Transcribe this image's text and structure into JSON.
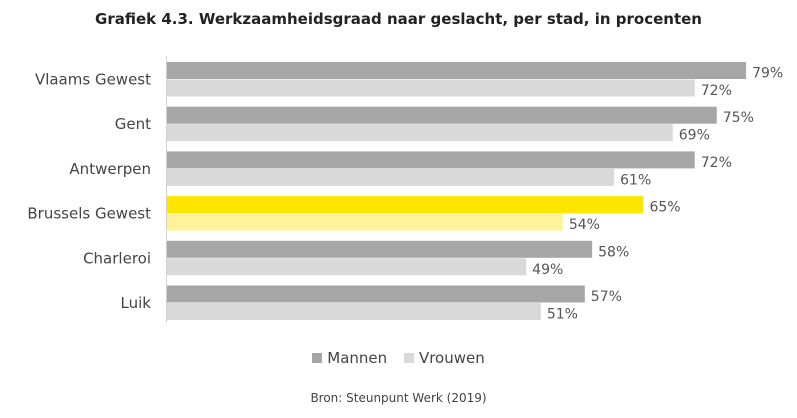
{
  "chart_data": {
    "type": "bar",
    "orientation": "horizontal",
    "title": "Grafiek 4.3. Werkzaamheidsgraad naar geslacht, per stad, in procenten",
    "categories": [
      "Vlaams Gewest",
      "Gent",
      "Antwerpen",
      "Brussels Gewest",
      "Charleroi",
      "Luik"
    ],
    "series": [
      {
        "name": "Mannen",
        "values": [
          79,
          75,
          72,
          65,
          58,
          57
        ],
        "color": "#a6a6a6",
        "highlight_color": "#ffe600"
      },
      {
        "name": "Vrouwen",
        "values": [
          72,
          69,
          61,
          54,
          49,
          51
        ],
        "color": "#d9d9d9",
        "highlight_color": "#fff29a"
      }
    ],
    "highlighted_category": "Brussels Gewest",
    "value_suffix": "%",
    "xlim": [
      0,
      100
    ],
    "grid": false,
    "legend_position": "bottom",
    "source": "Bron: Steunpunt Werk (2019)"
  }
}
